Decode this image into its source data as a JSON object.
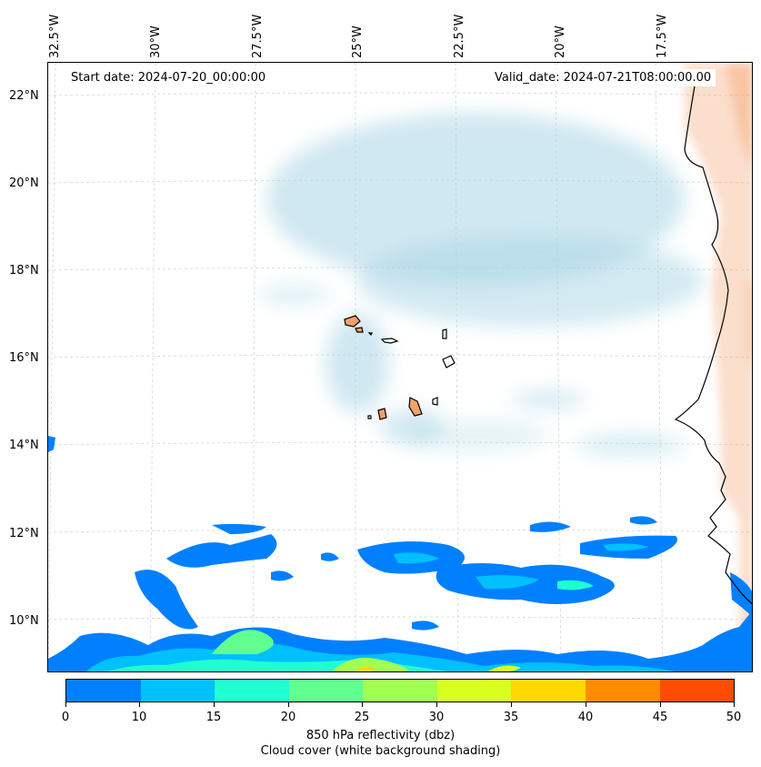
{
  "header": {
    "start_date": "Start date: 2024-07-20_00:00:00",
    "valid_date": "Valid_date: 2024-07-21T08:00:00.00"
  },
  "axes": {
    "lon_labels": [
      "32.5°W",
      "30°W",
      "27.5°W",
      "25°W",
      "22.5°W",
      "20°W",
      "17.5°W"
    ],
    "lat_labels": [
      "22°N",
      "20°N",
      "18°N",
      "16°N",
      "14°N",
      "12°N",
      "10°N"
    ]
  },
  "colorbar": {
    "ticks": [
      "0",
      "10",
      "15",
      "20",
      "25",
      "30",
      "35",
      "40",
      "45",
      "50"
    ],
    "colors": [
      "#0080ff",
      "#00c0ff",
      "#20ffd0",
      "#60ff90",
      "#a0ff50",
      "#d8ff20",
      "#ffd800",
      "#ff8c00",
      "#ff4c00"
    ],
    "label": "850 hPa reflectivity (dbz)",
    "sublabel": "Cloud cover (white background shading)"
  },
  "map_colors": {
    "cloud": "#a9d6e5",
    "land": "#f3a06a",
    "coast": "#000000",
    "grid": "#cfcfcf"
  }
}
